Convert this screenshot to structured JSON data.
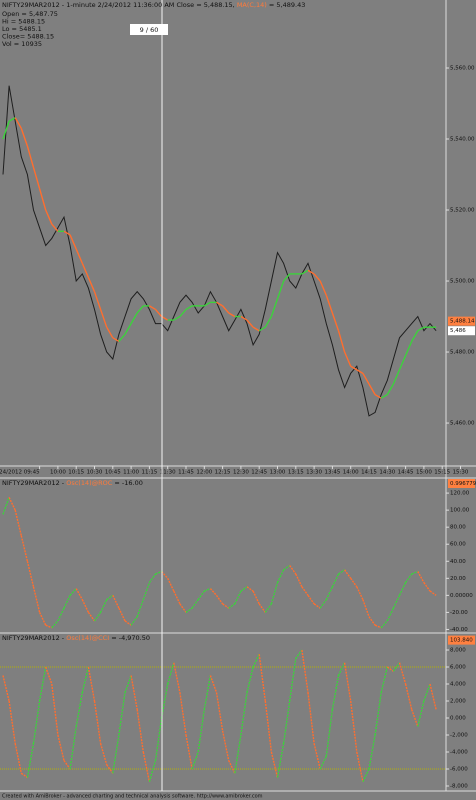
{
  "cursor_label": "9 / 60",
  "footer": "Created with AmiBroker - advanced charting and technical analysis software. http://www.amibroker.com",
  "chart_data": [
    {
      "type": "line",
      "title": "NIFTY29MAR2012 - 1-minute 2/24/2012 11:36:00 AM Close = 5,488.15,",
      "indicator": "MA(C,14)",
      "indicator_value": "= 5,489.43",
      "info": [
        "Open = 5,487.75",
        "Hi = 5488.15",
        "Lo = 5485.1",
        "Close= 5488.15",
        "Vol = 10935"
      ],
      "categories": [
        null,
        null,
        null,
        null,
        null,
        null,
        "2/24/2012 09:45",
        null,
        null,
        "10:00",
        null,
        null,
        "10:15",
        null,
        null,
        "10:30",
        null,
        null,
        "10:45",
        null,
        null,
        "11:00",
        null,
        null,
        "11:15",
        null,
        null,
        "11:30",
        null,
        null,
        "11:45",
        null,
        null,
        "12:00",
        null,
        null,
        "12:15",
        null,
        null,
        "12:30",
        null,
        null,
        "12:45",
        null,
        null,
        "13:00",
        null,
        null,
        "13:15",
        null,
        null,
        "13:30",
        null,
        null,
        "13:45",
        null,
        null,
        "14:00",
        null,
        null,
        "14:15",
        null,
        null,
        "14:30",
        null,
        null,
        "14:45",
        null,
        null,
        "15:00",
        null,
        null,
        "15:15",
        null,
        null,
        "15:30"
      ],
      "series": [
        {
          "color": "#1e1e1e",
          "values": [
            5530,
            5555,
            5545,
            5535,
            5530,
            5520,
            5515,
            5510,
            5512,
            5515,
            5518,
            5510,
            5500,
            5502,
            5498,
            5492,
            5485,
            5480,
            5478,
            5485,
            5490,
            5495,
            5497,
            5495,
            5492,
            5488,
            5488,
            5486,
            5490,
            5494,
            5496,
            5494,
            5491,
            5493,
            5497,
            5494,
            5490,
            5486,
            5489,
            5492,
            5488,
            5482,
            5485,
            5492,
            5500,
            5508,
            5505,
            5500,
            5498,
            5502,
            5505,
            5500,
            5495,
            5488,
            5482,
            5475,
            5470,
            5474,
            5476,
            5470,
            5462,
            5463,
            5468,
            5472,
            5478,
            5484,
            5486,
            5488,
            5490,
            5486,
            5488,
            5486,
            null,
            null,
            null,
            null
          ]
        },
        {
          "up_color": "#3cd23c",
          "down_color": "#ff6e2e",
          "values": [
            5540,
            5545,
            5546,
            5543,
            5538,
            5532,
            5526,
            5520,
            5516,
            5514,
            5514,
            5513,
            5509,
            5505,
            5501,
            5497,
            5492,
            5487,
            5484,
            5483,
            5485,
            5488,
            5491,
            5493,
            5493,
            5492,
            5490,
            5489,
            5489,
            5490,
            5492,
            5493,
            5493,
            5493,
            5494,
            5494,
            5493,
            5491,
            5490,
            5490,
            5489,
            5487,
            5486,
            5487,
            5490,
            5495,
            5500,
            5502,
            5502,
            5502,
            5503,
            5502,
            5500,
            5496,
            5491,
            5486,
            5480,
            5476,
            5475,
            5474,
            5471,
            5468,
            5467,
            5468,
            5471,
            5475,
            5479,
            5483,
            5486,
            5487,
            5487,
            5487,
            null,
            null,
            null,
            null
          ]
        }
      ],
      "ylim": [
        5447.9,
        5579.15
      ],
      "yticks": [
        {
          "value": 5560,
          "label": "5,560.00"
        },
        {
          "value": 5540,
          "label": "5,540.00"
        },
        {
          "value": 5520,
          "label": "5,520.00"
        },
        {
          "value": 5500,
          "label": "5,500.00"
        },
        {
          "value": 5480,
          "label": "5,480.00"
        },
        {
          "value": 5460,
          "label": "5,460.00"
        }
      ],
      "last_labels": [
        {
          "value": 5486,
          "label": "5,486",
          "color": "#ffffff"
        },
        {
          "value": 5488.14,
          "label": "5,488.14",
          "color": "#ff8040"
        }
      ]
    },
    {
      "type": "line",
      "title": "NIFTY29MAR2012 -",
      "indicator": "Osc(14)@ROC",
      "indicator_value": "= -16.00",
      "series": [
        {
          "up_color": "#3cd23c",
          "down_color": "#ff6e2e",
          "values": [
            95,
            115,
            100,
            70,
            40,
            10,
            -20,
            -35,
            -38,
            -30,
            -15,
            0,
            8,
            -5,
            -20,
            -30,
            -20,
            -5,
            0,
            -15,
            -30,
            -35,
            -25,
            -5,
            15,
            25,
            28,
            20,
            5,
            -10,
            -20,
            -15,
            -5,
            5,
            8,
            0,
            -10,
            -15,
            -10,
            5,
            10,
            5,
            -10,
            -20,
            -10,
            15,
            30,
            35,
            25,
            10,
            0,
            -10,
            -15,
            -5,
            10,
            25,
            30,
            20,
            10,
            -5,
            -25,
            -35,
            -38,
            -30,
            -15,
            0,
            15,
            25,
            28,
            15,
            5,
            0,
            null,
            null,
            null,
            null
          ]
        }
      ],
      "ylim": [
        -43,
        133
      ],
      "yticks": [
        {
          "value": 120,
          "label": "120.00"
        },
        {
          "value": 100,
          "label": "100.00"
        },
        {
          "value": 80,
          "label": "80.00"
        },
        {
          "value": 60,
          "label": "60.00"
        },
        {
          "value": 40,
          "label": "40.00"
        },
        {
          "value": 20,
          "label": "20.00"
        },
        {
          "value": 0,
          "label": "0.00000"
        },
        {
          "value": -20,
          "label": "-20.00"
        },
        {
          "value": -40,
          "label": "-40.00"
        }
      ],
      "last_labels": [
        {
          "value": 0.996779,
          "label": "0.996779",
          "color": "#ff8040"
        }
      ]
    },
    {
      "type": "line",
      "title": "NIFTY29MAR2012 -",
      "indicator": "Osc(14)@CCI",
      "indicator_value": "= -4,970.50",
      "series": [
        {
          "up_color": "#3cd23c",
          "down_color": "#ff6e2e",
          "values": [
            5000,
            2000,
            -3000,
            -6500,
            -7000,
            -3000,
            2000,
            6000,
            4000,
            -2000,
            -5000,
            -6000,
            -1000,
            3000,
            6000,
            2000,
            -3000,
            -5500,
            -6500,
            -2000,
            3000,
            5000,
            1000,
            -4000,
            -7500,
            -5000,
            0,
            4000,
            6500,
            3000,
            -2000,
            -6000,
            -4000,
            1000,
            5000,
            3000,
            -1500,
            -5000,
            -6500,
            -2000,
            3000,
            6000,
            7500,
            2000,
            -4000,
            -7000,
            -3000,
            2000,
            7000,
            8000,
            3000,
            -3000,
            -6000,
            -4500,
            1000,
            5000,
            6500,
            2000,
            -4000,
            -7500,
            -6000,
            -2000,
            3000,
            6000,
            5500,
            6500,
            4000,
            1000,
            -1000,
            2000,
            4000,
            1000,
            null,
            null,
            null,
            null
          ]
        }
      ],
      "ylim": [
        -8471,
        9647
      ],
      "yticks": [
        {
          "value": 8000,
          "label": "8,000"
        },
        {
          "value": 6000,
          "label": "6,000"
        },
        {
          "value": 4000,
          "label": "4,000"
        },
        {
          "value": 2000,
          "label": "2,000"
        },
        {
          "value": 0,
          "label": "0.000"
        },
        {
          "value": -2000,
          "label": "-2,000"
        },
        {
          "value": -4000,
          "label": "-4,000"
        },
        {
          "value": -6000,
          "label": "-6,000"
        },
        {
          "value": -8000,
          "label": "-8,000"
        }
      ],
      "levels": [
        6000,
        -6000
      ],
      "level_color": "#b4b400",
      "last_labels": [
        {
          "value": 103.84,
          "label": "103.840",
          "color": "#ff8040"
        }
      ]
    }
  ]
}
